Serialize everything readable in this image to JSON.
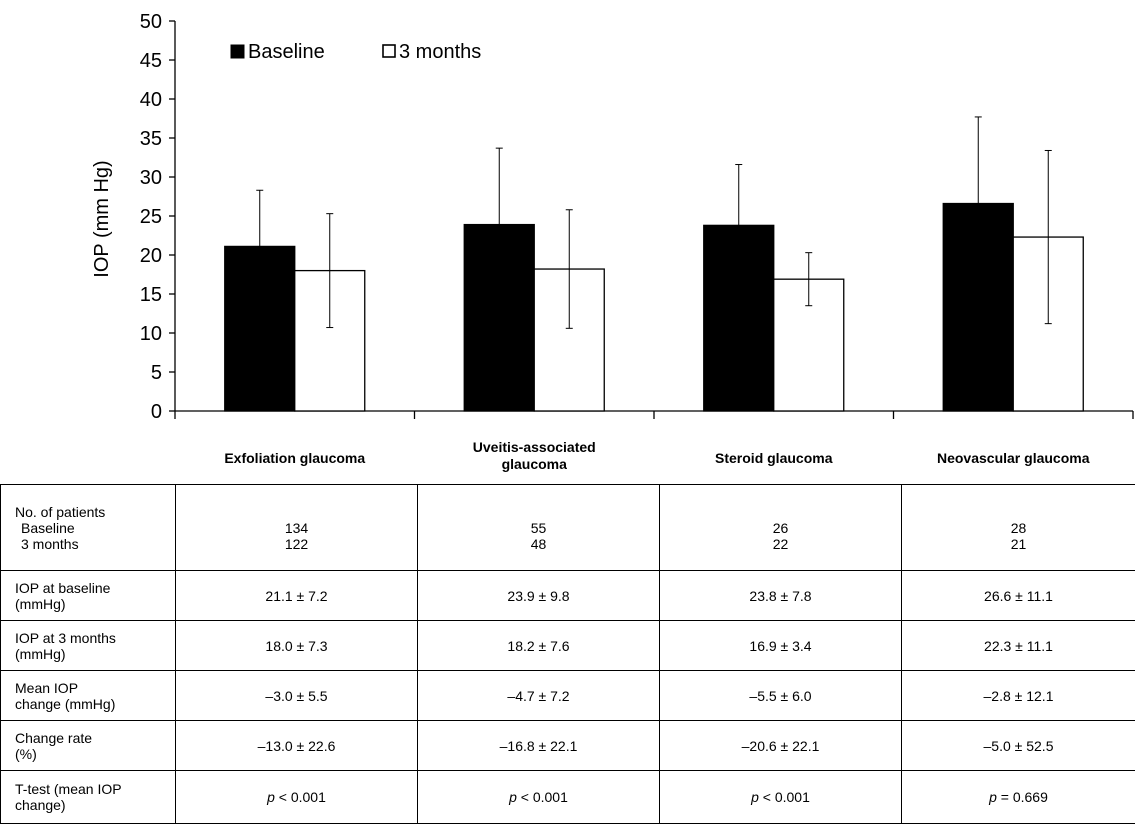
{
  "chart_data": {
    "type": "bar",
    "ylabel": "IOP (mm Hg)",
    "ylim": [
      0,
      50
    ],
    "yticks": [
      0,
      5,
      10,
      15,
      20,
      25,
      30,
      35,
      40,
      45,
      50
    ],
    "categories": [
      "Exfoliation glaucoma",
      "Uveitis-associated glaucoma",
      "Steroid glaucoma",
      "Neovascular glaucoma"
    ],
    "series": [
      {
        "name": "Baseline",
        "color": "#000000",
        "values": [
          21.1,
          23.9,
          23.8,
          26.6
        ],
        "errors": [
          7.2,
          9.8,
          7.8,
          11.1
        ]
      },
      {
        "name": "3 months",
        "color": "#ffffff",
        "values": [
          18.0,
          18.2,
          16.9,
          22.3
        ],
        "errors": [
          7.3,
          7.6,
          3.4,
          11.1
        ]
      }
    ],
    "legend": {
      "position": "top-left",
      "marker_baseline": "■",
      "marker_3months": "□"
    },
    "grid": false
  },
  "table": {
    "rows": [
      {
        "label_lines": [
          "No. of patients",
          "Baseline",
          "3 months"
        ],
        "cells": [
          [
            "",
            "134",
            "122"
          ],
          [
            "",
            "55",
            "48"
          ],
          [
            "",
            "26",
            "22"
          ],
          [
            "",
            "28",
            "21"
          ]
        ]
      },
      {
        "label_lines": [
          "IOP at baseline",
          "(mmHg)"
        ],
        "cells": [
          "21.1 ± 7.2",
          "23.9 ± 9.8",
          "23.8 ± 7.8",
          "26.6 ± 11.1"
        ]
      },
      {
        "label_lines": [
          "IOP at 3 months",
          "(mmHg)"
        ],
        "cells": [
          "18.0 ± 7.3",
          "18.2 ± 7.6",
          "16.9 ± 3.4",
          "22.3 ± 11.1"
        ]
      },
      {
        "label_lines": [
          "Mean IOP",
          "change (mmHg)"
        ],
        "cells": [
          "–3.0 ± 5.5",
          "–4.7 ± 7.2",
          "–5.5 ± 6.0",
          "–2.8 ± 12.1"
        ]
      },
      {
        "label_lines": [
          "Change rate",
          "(%)"
        ],
        "cells": [
          "–13.0 ± 22.6",
          "–16.8 ± 22.1",
          "–20.6 ± 22.1",
          "–5.0 ± 52.5"
        ]
      },
      {
        "label_lines": [
          "T-test (mean IOP",
          "change)"
        ],
        "pvalue": true,
        "cells": [
          [
            "p",
            " < 0.001"
          ],
          [
            "p",
            " < 0.001"
          ],
          [
            "p",
            " < 0.001"
          ],
          [
            "p",
            " = 0.669"
          ]
        ]
      }
    ]
  }
}
